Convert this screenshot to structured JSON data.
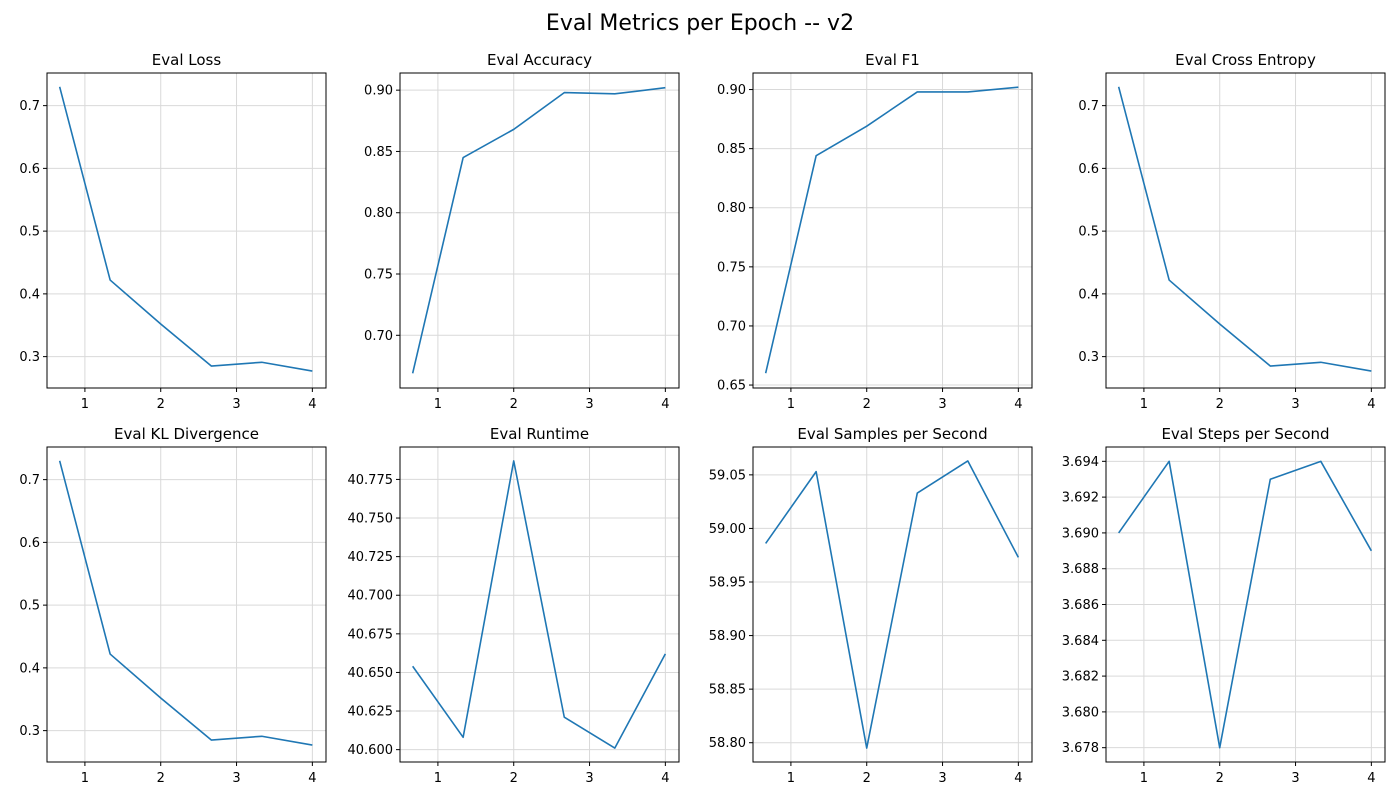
{
  "figure_title": "Eval Metrics per Epoch -- v2",
  "colors": {
    "line": "#1f77b4",
    "grid": "#d9d9d9",
    "axes": "#000000"
  },
  "chart_data": [
    {
      "type": "line",
      "title": "Eval Loss",
      "xlabel": "",
      "ylabel": "",
      "x": [
        0.667,
        1.333,
        2,
        2.667,
        3.333,
        4
      ],
      "y": [
        0.73,
        0.422,
        0.352,
        0.285,
        0.291,
        0.277
      ],
      "xlim": [
        0.5,
        4.18
      ],
      "ylim": [
        0.25,
        0.752
      ],
      "xticks": [
        1,
        2,
        3,
        4
      ],
      "xtick_labels": [
        "1",
        "2",
        "3",
        "4"
      ],
      "yticks": [
        0.3,
        0.4,
        0.5,
        0.6,
        0.7
      ],
      "ytick_labels": [
        "0.3",
        "0.4",
        "0.5",
        "0.6",
        "0.7"
      ],
      "grid": true
    },
    {
      "type": "line",
      "title": "Eval Accuracy",
      "xlabel": "",
      "ylabel": "",
      "x": [
        0.667,
        1.333,
        2,
        2.667,
        3.333,
        4
      ],
      "y": [
        0.669,
        0.845,
        0.868,
        0.898,
        0.897,
        0.902
      ],
      "xlim": [
        0.5,
        4.18
      ],
      "ylim": [
        0.657,
        0.914
      ],
      "xticks": [
        1,
        2,
        3,
        4
      ],
      "xtick_labels": [
        "1",
        "2",
        "3",
        "4"
      ],
      "yticks": [
        0.7,
        0.75,
        0.8,
        0.85,
        0.9
      ],
      "ytick_labels": [
        "0.70",
        "0.75",
        "0.80",
        "0.85",
        "0.90"
      ],
      "grid": true
    },
    {
      "type": "line",
      "title": "Eval F1",
      "xlabel": "",
      "ylabel": "",
      "x": [
        0.667,
        1.333,
        2,
        2.667,
        3.333,
        4
      ],
      "y": [
        0.66,
        0.844,
        0.869,
        0.898,
        0.898,
        0.902
      ],
      "xlim": [
        0.5,
        4.18
      ],
      "ylim": [
        0.6475,
        0.914
      ],
      "xticks": [
        1,
        2,
        3,
        4
      ],
      "xtick_labels": [
        "1",
        "2",
        "3",
        "4"
      ],
      "yticks": [
        0.65,
        0.7,
        0.75,
        0.8,
        0.85,
        0.9
      ],
      "ytick_labels": [
        "0.65",
        "0.70",
        "0.75",
        "0.80",
        "0.85",
        "0.90"
      ],
      "grid": true
    },
    {
      "type": "line",
      "title": "Eval Cross Entropy",
      "xlabel": "",
      "ylabel": "",
      "x": [
        0.667,
        1.333,
        2,
        2.667,
        3.333,
        4
      ],
      "y": [
        0.73,
        0.422,
        0.352,
        0.285,
        0.291,
        0.277
      ],
      "xlim": [
        0.5,
        4.18
      ],
      "ylim": [
        0.25,
        0.752
      ],
      "xticks": [
        1,
        2,
        3,
        4
      ],
      "xtick_labels": [
        "1",
        "2",
        "3",
        "4"
      ],
      "yticks": [
        0.3,
        0.4,
        0.5,
        0.6,
        0.7
      ],
      "ytick_labels": [
        "0.3",
        "0.4",
        "0.5",
        "0.6",
        "0.7"
      ],
      "grid": true
    },
    {
      "type": "line",
      "title": "Eval KL Divergence",
      "xlabel": "",
      "ylabel": "",
      "x": [
        0.667,
        1.333,
        2,
        2.667,
        3.333,
        4
      ],
      "y": [
        0.73,
        0.422,
        0.352,
        0.285,
        0.291,
        0.277
      ],
      "xlim": [
        0.5,
        4.18
      ],
      "ylim": [
        0.25,
        0.752
      ],
      "xticks": [
        1,
        2,
        3,
        4
      ],
      "xtick_labels": [
        "1",
        "2",
        "3",
        "4"
      ],
      "yticks": [
        0.3,
        0.4,
        0.5,
        0.6,
        0.7
      ],
      "ytick_labels": [
        "0.3",
        "0.4",
        "0.5",
        "0.6",
        "0.7"
      ],
      "grid": true
    },
    {
      "type": "line",
      "title": "Eval Runtime",
      "xlabel": "",
      "ylabel": "",
      "x": [
        0.667,
        1.333,
        2,
        2.667,
        3.333,
        4
      ],
      "y": [
        40.654,
        40.608,
        40.787,
        40.621,
        40.601,
        40.662
      ],
      "xlim": [
        0.5,
        4.18
      ],
      "ylim": [
        40.592,
        40.796
      ],
      "xticks": [
        1,
        2,
        3,
        4
      ],
      "xtick_labels": [
        "1",
        "2",
        "3",
        "4"
      ],
      "yticks": [
        40.6,
        40.625,
        40.65,
        40.675,
        40.7,
        40.725,
        40.75,
        40.775
      ],
      "ytick_labels": [
        "40.600",
        "40.625",
        "40.650",
        "40.675",
        "40.700",
        "40.725",
        "40.750",
        "40.775"
      ],
      "grid": true
    },
    {
      "type": "line",
      "title": "Eval Samples per Second",
      "xlabel": "",
      "ylabel": "",
      "x": [
        0.667,
        1.333,
        2,
        2.667,
        3.333,
        4
      ],
      "y": [
        58.986,
        59.053,
        58.795,
        59.033,
        59.063,
        58.973
      ],
      "xlim": [
        0.5,
        4.18
      ],
      "ylim": [
        58.782,
        59.076
      ],
      "xticks": [
        1,
        2,
        3,
        4
      ],
      "xtick_labels": [
        "1",
        "2",
        "3",
        "4"
      ],
      "yticks": [
        58.8,
        58.85,
        58.9,
        58.95,
        59.0,
        59.05
      ],
      "ytick_labels": [
        "58.80",
        "58.85",
        "58.90",
        "58.95",
        "59.00",
        "59.05"
      ],
      "grid": true
    },
    {
      "type": "line",
      "title": "Eval Steps per Second",
      "xlabel": "",
      "ylabel": "",
      "x": [
        0.667,
        1.333,
        2,
        2.667,
        3.333,
        4
      ],
      "y": [
        3.69,
        3.694,
        3.678,
        3.693,
        3.694,
        3.689
      ],
      "xlim": [
        0.5,
        4.18
      ],
      "ylim": [
        3.6772,
        3.6948
      ],
      "xticks": [
        1,
        2,
        3,
        4
      ],
      "xtick_labels": [
        "1",
        "2",
        "3",
        "4"
      ],
      "yticks": [
        3.678,
        3.68,
        3.682,
        3.684,
        3.686,
        3.688,
        3.69,
        3.692,
        3.694
      ],
      "ytick_labels": [
        "3.678",
        "3.680",
        "3.682",
        "3.684",
        "3.686",
        "3.688",
        "3.690",
        "3.692",
        "3.694"
      ],
      "grid": true
    }
  ]
}
